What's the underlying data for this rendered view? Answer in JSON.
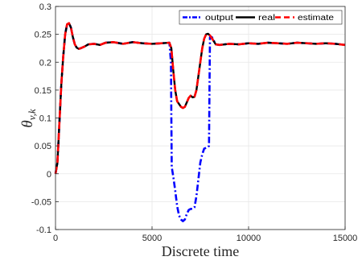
{
  "chart_data": {
    "type": "line",
    "title": "",
    "xlabel": "Discrete time",
    "ylabel": {
      "main": "θ",
      "subscript": "v,k"
    },
    "xlim": [
      0,
      15000
    ],
    "ylim": [
      -0.1,
      0.3
    ],
    "xticks": [
      0,
      5000,
      10000,
      15000
    ],
    "yticks": [
      -0.1,
      -0.05,
      0,
      0.05,
      0.1,
      0.15,
      0.2,
      0.25,
      0.3
    ],
    "xtick_labels": [
      "0",
      "5000",
      "10000",
      "15000"
    ],
    "ytick_labels": [
      "-0.1",
      "-0.05",
      "0",
      "0.05",
      "0.1",
      "0.15",
      "0.2",
      "0.25",
      "0.3"
    ],
    "grid": true,
    "legend": {
      "placement": "top-right",
      "orientation": "horizontal"
    },
    "series": [
      {
        "name": "output",
        "color": "#0000ff",
        "style": "dash-dot",
        "points": [
          [
            0,
            0
          ],
          [
            100,
            0.02
          ],
          [
            200,
            0.09
          ],
          [
            300,
            0.16
          ],
          [
            400,
            0.21
          ],
          [
            500,
            0.25
          ],
          [
            600,
            0.268
          ],
          [
            700,
            0.27
          ],
          [
            800,
            0.262
          ],
          [
            900,
            0.245
          ],
          [
            1000,
            0.232
          ],
          [
            1100,
            0.226
          ],
          [
            1200,
            0.224
          ],
          [
            1300,
            0.225
          ],
          [
            1500,
            0.228
          ],
          [
            1700,
            0.232
          ],
          [
            2000,
            0.233
          ],
          [
            2300,
            0.231
          ],
          [
            2600,
            0.235
          ],
          [
            3000,
            0.236
          ],
          [
            3500,
            0.233
          ],
          [
            4000,
            0.236
          ],
          [
            4500,
            0.234
          ],
          [
            5000,
            0.233
          ],
          [
            5500,
            0.234
          ],
          [
            5900,
            0.235
          ],
          [
            5980,
            0.2
          ],
          [
            6000,
            0.1
          ],
          [
            6020,
            0.012
          ],
          [
            6100,
            -0.005
          ],
          [
            6200,
            -0.03
          ],
          [
            6300,
            -0.058
          ],
          [
            6400,
            -0.075
          ],
          [
            6500,
            -0.082
          ],
          [
            6600,
            -0.085
          ],
          [
            6700,
            -0.082
          ],
          [
            6800,
            -0.072
          ],
          [
            6900,
            -0.065
          ],
          [
            7000,
            -0.063
          ],
          [
            7100,
            -0.063
          ],
          [
            7200,
            -0.06
          ],
          [
            7300,
            -0.04
          ],
          [
            7400,
            -0.01
          ],
          [
            7500,
            0.02
          ],
          [
            7600,
            0.035
          ],
          [
            7700,
            0.045
          ],
          [
            7900,
            0.048
          ],
          [
            7950,
            0.05
          ],
          [
            7980,
            0.17
          ],
          [
            8000,
            0.245
          ],
          [
            8100,
            0.245
          ],
          [
            8300,
            0.232
          ],
          [
            8500,
            0.231
          ],
          [
            9000,
            0.233
          ],
          [
            9500,
            0.232
          ],
          [
            10000,
            0.234
          ],
          [
            10500,
            0.233
          ],
          [
            11000,
            0.235
          ],
          [
            11500,
            0.234
          ],
          [
            12000,
            0.233
          ],
          [
            12500,
            0.235
          ],
          [
            13000,
            0.234
          ],
          [
            13500,
            0.233
          ],
          [
            14000,
            0.234
          ],
          [
            14500,
            0.233
          ],
          [
            15000,
            0.231
          ]
        ]
      },
      {
        "name": "real",
        "color": "#000000",
        "style": "solid",
        "points": [
          [
            0,
            0
          ],
          [
            100,
            0.02
          ],
          [
            200,
            0.09
          ],
          [
            300,
            0.16
          ],
          [
            400,
            0.21
          ],
          [
            500,
            0.25
          ],
          [
            600,
            0.268
          ],
          [
            700,
            0.27
          ],
          [
            800,
            0.262
          ],
          [
            900,
            0.245
          ],
          [
            1000,
            0.232
          ],
          [
            1100,
            0.226
          ],
          [
            1200,
            0.224
          ],
          [
            1300,
            0.225
          ],
          [
            1500,
            0.228
          ],
          [
            1700,
            0.232
          ],
          [
            2000,
            0.233
          ],
          [
            2300,
            0.231
          ],
          [
            2600,
            0.235
          ],
          [
            3000,
            0.236
          ],
          [
            3500,
            0.233
          ],
          [
            4000,
            0.236
          ],
          [
            4500,
            0.234
          ],
          [
            5000,
            0.233
          ],
          [
            5500,
            0.234
          ],
          [
            5900,
            0.235
          ],
          [
            6000,
            0.225
          ],
          [
            6100,
            0.185
          ],
          [
            6200,
            0.15
          ],
          [
            6300,
            0.13
          ],
          [
            6400,
            0.125
          ],
          [
            6500,
            0.12
          ],
          [
            6600,
            0.118
          ],
          [
            6700,
            0.12
          ],
          [
            6800,
            0.128
          ],
          [
            6900,
            0.136
          ],
          [
            7000,
            0.14
          ],
          [
            7100,
            0.137
          ],
          [
            7200,
            0.138
          ],
          [
            7300,
            0.15
          ],
          [
            7400,
            0.175
          ],
          [
            7500,
            0.2
          ],
          [
            7600,
            0.225
          ],
          [
            7700,
            0.242
          ],
          [
            7800,
            0.25
          ],
          [
            7900,
            0.251
          ],
          [
            8000,
            0.248
          ],
          [
            8100,
            0.243
          ],
          [
            8300,
            0.232
          ],
          [
            8500,
            0.231
          ],
          [
            9000,
            0.233
          ],
          [
            9500,
            0.232
          ],
          [
            10000,
            0.234
          ],
          [
            10500,
            0.233
          ],
          [
            11000,
            0.235
          ],
          [
            11500,
            0.234
          ],
          [
            12000,
            0.233
          ],
          [
            12500,
            0.235
          ],
          [
            13000,
            0.234
          ],
          [
            13500,
            0.233
          ],
          [
            14000,
            0.234
          ],
          [
            14500,
            0.233
          ],
          [
            15000,
            0.231
          ]
        ]
      },
      {
        "name": "estimate",
        "color": "#ff0000",
        "style": "dashed",
        "points": [
          [
            0,
            0
          ],
          [
            100,
            0.02
          ],
          [
            200,
            0.09
          ],
          [
            300,
            0.16
          ],
          [
            400,
            0.21
          ],
          [
            500,
            0.25
          ],
          [
            600,
            0.268
          ],
          [
            700,
            0.27
          ],
          [
            800,
            0.262
          ],
          [
            900,
            0.245
          ],
          [
            1000,
            0.232
          ],
          [
            1100,
            0.226
          ],
          [
            1200,
            0.224
          ],
          [
            1300,
            0.225
          ],
          [
            1500,
            0.228
          ],
          [
            1700,
            0.232
          ],
          [
            2000,
            0.233
          ],
          [
            2300,
            0.231
          ],
          [
            2600,
            0.235
          ],
          [
            3000,
            0.236
          ],
          [
            3500,
            0.233
          ],
          [
            4000,
            0.236
          ],
          [
            4500,
            0.234
          ],
          [
            5000,
            0.233
          ],
          [
            5500,
            0.234
          ],
          [
            5900,
            0.235
          ],
          [
            6000,
            0.225
          ],
          [
            6100,
            0.185
          ],
          [
            6200,
            0.15
          ],
          [
            6300,
            0.13
          ],
          [
            6400,
            0.125
          ],
          [
            6500,
            0.12
          ],
          [
            6600,
            0.118
          ],
          [
            6700,
            0.12
          ],
          [
            6800,
            0.128
          ],
          [
            6900,
            0.136
          ],
          [
            7000,
            0.14
          ],
          [
            7100,
            0.137
          ],
          [
            7200,
            0.138
          ],
          [
            7300,
            0.15
          ],
          [
            7400,
            0.175
          ],
          [
            7500,
            0.2
          ],
          [
            7600,
            0.225
          ],
          [
            7700,
            0.242
          ],
          [
            7800,
            0.25
          ],
          [
            7900,
            0.251
          ],
          [
            8000,
            0.248
          ],
          [
            8100,
            0.243
          ],
          [
            8300,
            0.232
          ],
          [
            8500,
            0.231
          ],
          [
            9000,
            0.233
          ],
          [
            9500,
            0.232
          ],
          [
            10000,
            0.234
          ],
          [
            10500,
            0.233
          ],
          [
            11000,
            0.235
          ],
          [
            11500,
            0.234
          ],
          [
            12000,
            0.233
          ],
          [
            12500,
            0.235
          ],
          [
            13000,
            0.234
          ],
          [
            13500,
            0.233
          ],
          [
            14000,
            0.234
          ],
          [
            14500,
            0.233
          ],
          [
            15000,
            0.231
          ]
        ]
      }
    ]
  }
}
